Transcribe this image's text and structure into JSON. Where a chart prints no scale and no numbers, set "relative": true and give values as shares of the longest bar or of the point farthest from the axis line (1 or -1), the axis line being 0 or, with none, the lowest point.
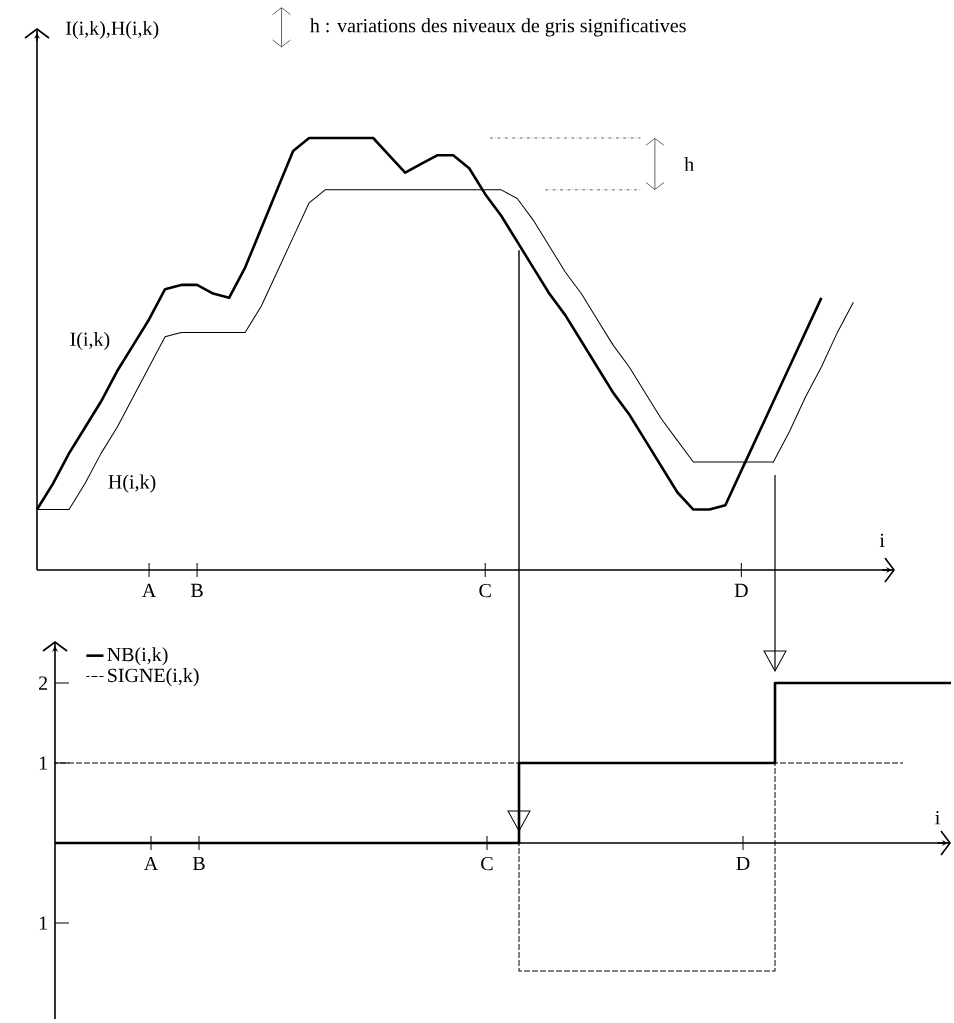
{
  "chart_data": [
    {
      "type": "line",
      "relative": true,
      "xlabel": "i",
      "ylabel": "I(i,k),H(i,k)",
      "marker": "none",
      "legend": false,
      "categories": [
        null,
        null,
        null,
        null,
        null,
        null,
        null,
        "A",
        null,
        null,
        "B",
        null,
        null,
        null,
        null,
        null,
        null,
        null,
        null,
        null,
        null,
        null,
        null,
        null,
        null,
        null,
        null,
        null,
        "C",
        null,
        null,
        null,
        null,
        null,
        null,
        null,
        null,
        null,
        null,
        null,
        null,
        null,
        null,
        null,
        "D",
        null,
        null,
        null,
        null,
        null,
        null,
        null,
        null,
        null
      ],
      "annotations": [
        "h : variations des niveaux de gris significatives",
        "h"
      ],
      "series": [
        {
          "name": "I(i,k)",
          "color": "#000000",
          "values": [
            0.14,
            0.2,
            0.27,
            0.33,
            0.39,
            0.46,
            0.52,
            0.58,
            0.65,
            0.66,
            0.66,
            0.64,
            0.63,
            0.7,
            0.79,
            0.88,
            0.97,
            1,
            1,
            1,
            1,
            1,
            0.96,
            0.92,
            0.94,
            0.96,
            0.96,
            0.93,
            0.87,
            0.82,
            0.76,
            0.7,
            0.64,
            0.59,
            0.53,
            0.47,
            0.41,
            0.36,
            0.3,
            0.24,
            0.18,
            0.14,
            0.14,
            0.15,
            0.23,
            0.31,
            0.39,
            0.47,
            0.55,
            0.63,
            null,
            null,
            null,
            null
          ]
        },
        {
          "name": "H(i,k)",
          "color": "#000000",
          "values": [
            0.14,
            0.14,
            0.14,
            0.2,
            0.27,
            0.33,
            0.4,
            0.47,
            0.54,
            0.55,
            0.55,
            0.55,
            0.55,
            0.55,
            0.61,
            0.69,
            0.77,
            0.85,
            0.88,
            0.88,
            0.88,
            0.88,
            0.88,
            0.88,
            0.88,
            0.88,
            0.88,
            0.88,
            0.88,
            0.88,
            0.86,
            0.81,
            0.75,
            0.69,
            0.64,
            0.58,
            0.52,
            0.47,
            0.41,
            0.35,
            0.3,
            0.25,
            0.25,
            0.25,
            0.25,
            0.25,
            0.25,
            0.32,
            0.4,
            0.47,
            0.55,
            0.62,
            null,
            null
          ]
        }
      ]
    },
    {
      "type": "step",
      "xlabel": "i",
      "marker": "none",
      "legend": "top left",
      "ylim": [
        -2.2,
        2.5
      ],
      "yticks": [
        {
          "value": -1,
          "label": "1"
        },
        1,
        2
      ],
      "categories": [
        null,
        null,
        null,
        null,
        null,
        null,
        "A",
        null,
        null,
        "B",
        null,
        null,
        null,
        null,
        null,
        null,
        null,
        null,
        null,
        null,
        null,
        null,
        null,
        null,
        null,
        null,
        null,
        "C",
        null,
        null,
        null,
        null,
        null,
        null,
        null,
        null,
        null,
        null,
        null,
        null,
        null,
        null,
        null,
        "D",
        null,
        null,
        null,
        null,
        null,
        null,
        null,
        null,
        null,
        null,
        null,
        null,
        null
      ],
      "series": [
        {
          "name": "NB(i,k)",
          "color": "#000000",
          "line_style": "solid",
          "values": [
            0,
            0,
            0,
            0,
            0,
            0,
            0,
            0,
            0,
            0,
            0,
            0,
            0,
            0,
            0,
            0,
            0,
            0,
            0,
            0,
            0,
            0,
            0,
            0,
            0,
            0,
            0,
            0,
            0,
            1,
            1,
            1,
            1,
            1,
            1,
            1,
            1,
            1,
            1,
            1,
            1,
            1,
            1,
            1,
            1,
            2,
            2,
            2,
            2,
            2,
            2,
            2,
            2,
            2,
            2,
            2,
            2
          ]
        },
        {
          "name": "SIGNE(i,k)",
          "color": "#000000",
          "line_style": "dashed",
          "values": [
            1,
            1,
            1,
            1,
            1,
            1,
            1,
            1,
            1,
            1,
            1,
            1,
            1,
            1,
            1,
            1,
            1,
            1,
            1,
            1,
            1,
            1,
            1,
            1,
            1,
            1,
            1,
            1,
            1,
            -1.6,
            -1.6,
            -1.6,
            -1.6,
            -1.6,
            -1.6,
            -1.6,
            -1.6,
            -1.6,
            -1.6,
            -1.6,
            -1.6,
            -1.6,
            -1.6,
            -1.6,
            -1.6,
            1,
            1,
            1,
            1,
            1,
            1,
            1,
            1,
            1,
            null,
            null,
            null
          ]
        }
      ]
    }
  ]
}
